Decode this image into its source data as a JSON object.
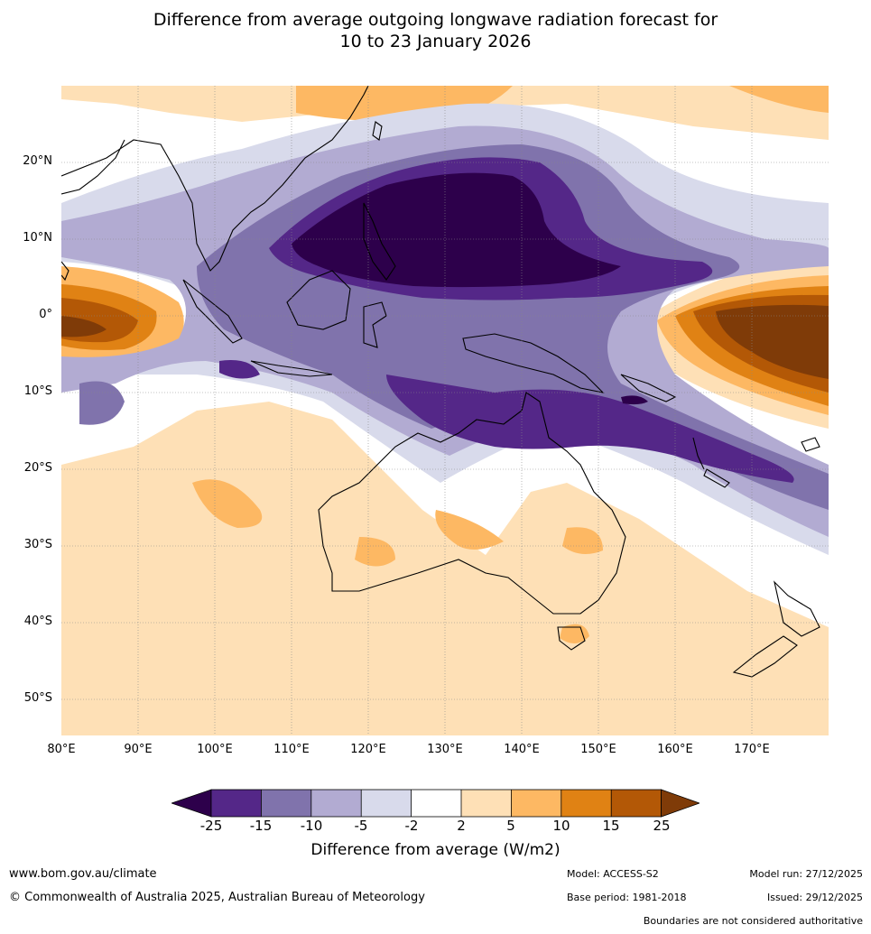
{
  "title_line1": "Difference from average outgoing longwave radiation forecast for",
  "title_line2": "10 to 23 January 2026",
  "map": {
    "lat_labels": [
      "20°N",
      "10°N",
      "0°",
      "10°S",
      "20°S",
      "30°S",
      "40°S",
      "50°S"
    ],
    "lon_labels": [
      "80°E",
      "90°E",
      "100°E",
      "110°E",
      "120°E",
      "130°E",
      "140°E",
      "150°E",
      "160°E",
      "170°E"
    ],
    "extent": {
      "lon_min": 80,
      "lon_max": 180,
      "lat_min": -55,
      "lat_max": 30
    }
  },
  "legend": {
    "ticks": [
      "-25",
      "-15",
      "-10",
      "-5",
      "-2",
      "2",
      "5",
      "10",
      "15",
      "25"
    ],
    "colors": {
      "below_-25": "#2d004b",
      "-25_-15": "#542788",
      "-15_-10": "#8073ac",
      "-10_-5": "#b2abd2",
      "-5_-2": "#d8daeb",
      "-2_2": "#ffffff",
      "2_5": "#fee0b6",
      "5_10": "#fdb863",
      "10_15": "#e08214",
      "15_25": "#b35806",
      "above_25": "#7f3b08"
    },
    "title": "Difference from average (W/m2)"
  },
  "footer": {
    "website": "www.bom.gov.au/climate",
    "copyright": "© Commonwealth of Australia 2025, Australian Bureau of Meteorology",
    "model": "Model: ACCESS-S2",
    "base_period": "Base period: 1981-2018",
    "model_run": "Model run: 27/12/2025",
    "issued": "Issued: 29/12/2025",
    "disclaimer": "Boundaries are not considered authoritative"
  }
}
